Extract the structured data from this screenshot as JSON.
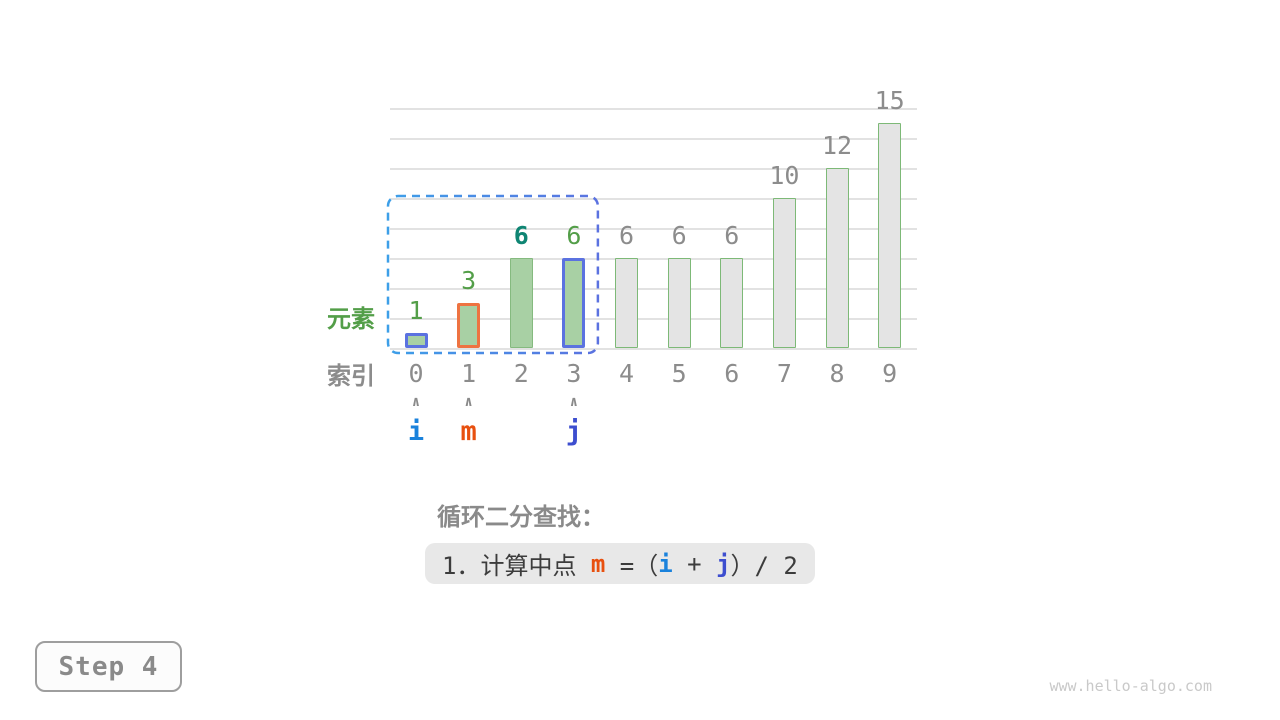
{
  "figure": {
    "step_badge": "Step 4",
    "watermark": "www.hello-algo.com",
    "caption_title": "循环二分查找：",
    "formula_segments": [
      {
        "text": "1．计算中点 ",
        "color": "text"
      },
      {
        "text": "m",
        "color": "m"
      },
      {
        "text": " =（",
        "color": "text"
      },
      {
        "text": "i",
        "color": "i"
      },
      {
        "text": " + ",
        "color": "text"
      },
      {
        "text": "j",
        "color": "j"
      },
      {
        "text": "）/ 2",
        "color": "text"
      }
    ]
  },
  "chart_data": {
    "type": "bar",
    "title": "",
    "xlabel": "索引",
    "ylabel": "元素",
    "categories": [
      "0",
      "1",
      "2",
      "3",
      "4",
      "5",
      "6",
      "7",
      "8",
      "9"
    ],
    "values": [
      1,
      3,
      6,
      6,
      6,
      6,
      6,
      10,
      12,
      15
    ],
    "ylim": [
      0,
      16
    ],
    "grid_step": 2,
    "grid": true,
    "legend": false,
    "bar_states": [
      "range-i",
      "range-m",
      "range",
      "range-j",
      "out",
      "out",
      "out",
      "out",
      "out",
      "out"
    ],
    "value_label_styles": [
      "green",
      "green",
      "teal",
      "green",
      "gray",
      "gray",
      "gray",
      "gray",
      "gray",
      "gray"
    ],
    "search_range": {
      "from": 0,
      "to": 3
    },
    "pointers": [
      {
        "index": 0,
        "label": "i",
        "color_key": "i"
      },
      {
        "index": 1,
        "label": "m",
        "color_key": "m"
      },
      {
        "index": 3,
        "label": "j",
        "color_key": "j"
      }
    ],
    "caret_glyph": "∧"
  },
  "colors": {
    "gridline": "#e2e2e2",
    "bar_green_fill": "#a8d0a4",
    "bar_green_border": "#85ba7f",
    "bar_gray_fill": "#e4e4e4",
    "bar_gray_border": "#7db977",
    "outline_blue": "#5b72e0",
    "outline_orange": "#ee7341",
    "dash_start": "#3d9fe8",
    "dash_end": "#5b72e0",
    "text_green": "#539e48",
    "text_teal": "#0f8573",
    "text_gray": "#8c8c8c",
    "pointer_i": "#1a82dc",
    "pointer_m": "#e8500f",
    "pointer_j": "#3d4ecf",
    "formula_bg": "#e8e8e8",
    "formula_text": "#3c3c3c"
  }
}
